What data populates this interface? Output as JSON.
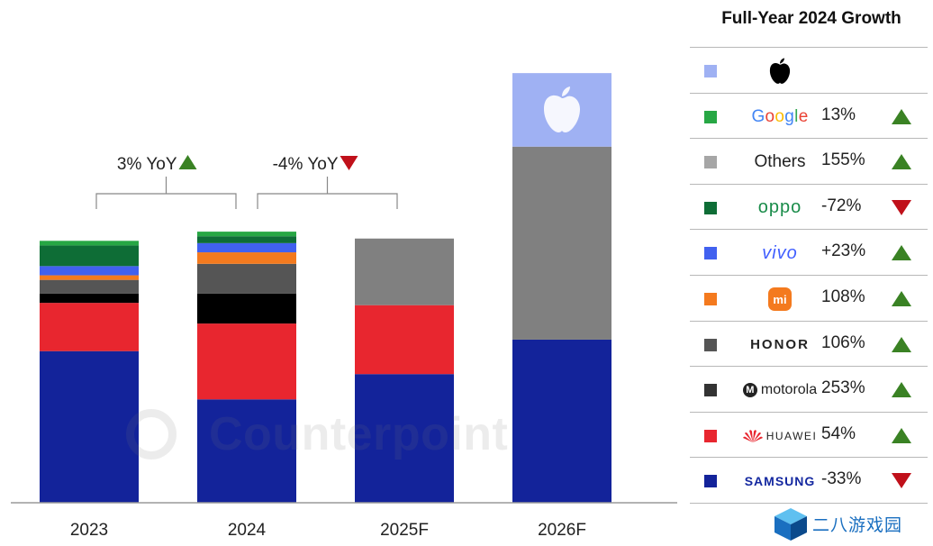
{
  "chart_data": {
    "type": "stacked-bar",
    "categories": [
      "2023",
      "2024",
      "2025F",
      "2026F"
    ],
    "ylim": [
      0,
      100
    ],
    "grid": false,
    "series": [
      {
        "name": "SAMSUNG",
        "color": "#13239a",
        "values": [
          33,
          22.5,
          28,
          35.5
        ]
      },
      {
        "name": "HUAWEI",
        "color": "#e8262f",
        "values": [
          10.5,
          16.5,
          15,
          0
        ]
      },
      {
        "name": "motorola",
        "color": "#000000",
        "values": [
          2,
          6.5,
          0,
          0
        ]
      },
      {
        "name": "HONOR",
        "color": "#555555",
        "values": [
          3,
          6.5,
          0,
          0
        ]
      },
      {
        "name": "mi",
        "color": "#f47a1e",
        "values": [
          1,
          2.5,
          0,
          0
        ]
      },
      {
        "name": "vivo",
        "color": "#4161ef",
        "values": [
          2,
          2,
          0,
          0
        ]
      },
      {
        "name": "oppo",
        "color": "#0e6d36",
        "values": [
          4.5,
          1.5,
          0,
          0
        ]
      },
      {
        "name": "Others",
        "color": "#808080",
        "values": [
          0,
          0,
          14.5,
          42
        ]
      },
      {
        "name": "Google",
        "color": "#27a744",
        "values": [
          1,
          1,
          0,
          0
        ]
      },
      {
        "name": "Apple",
        "color": "#9fb1f3",
        "values": [
          0,
          0,
          0,
          16
        ]
      }
    ],
    "annotations": [
      {
        "from": "2023",
        "to": "2024",
        "label": "3% YoY",
        "direction": "up"
      },
      {
        "from": "2024",
        "to": "2025F",
        "label": "-4% YoY",
        "direction": "down"
      }
    ],
    "watermark": "Counterpoint"
  },
  "legend": {
    "title": "Full-Year 2024 Growth",
    "rows": [
      {
        "key": "apple",
        "brand": "",
        "color": "#9fb1f3",
        "value": "",
        "direction": "none"
      },
      {
        "key": "google",
        "brand": "Google",
        "color": "#27a744",
        "value": "13%",
        "direction": "up"
      },
      {
        "key": "others",
        "brand": "Others",
        "color": "#a6a6a6",
        "value": "155%",
        "direction": "up"
      },
      {
        "key": "oppo",
        "brand": "oppo",
        "color": "#0e6d36",
        "value": "-72%",
        "direction": "down"
      },
      {
        "key": "vivo",
        "brand": "vivo",
        "color": "#4161ef",
        "value": "+23%",
        "direction": "up"
      },
      {
        "key": "mi",
        "brand": "mi",
        "color": "#f47a1e",
        "value": "108%",
        "direction": "up"
      },
      {
        "key": "honor",
        "brand": "HONOR",
        "color": "#555555",
        "value": "106%",
        "direction": "up"
      },
      {
        "key": "motorola",
        "brand": "motorola",
        "color": "#333333",
        "value": "253%",
        "direction": "up"
      },
      {
        "key": "huawei",
        "brand": "HUAWEI",
        "color": "#e8262f",
        "value": "54%",
        "direction": "up"
      },
      {
        "key": "samsung",
        "brand": "SAMSUNG",
        "color": "#13239a",
        "value": "-33%",
        "direction": "down"
      }
    ]
  },
  "site_watermark": {
    "text": "二八游戏园"
  }
}
